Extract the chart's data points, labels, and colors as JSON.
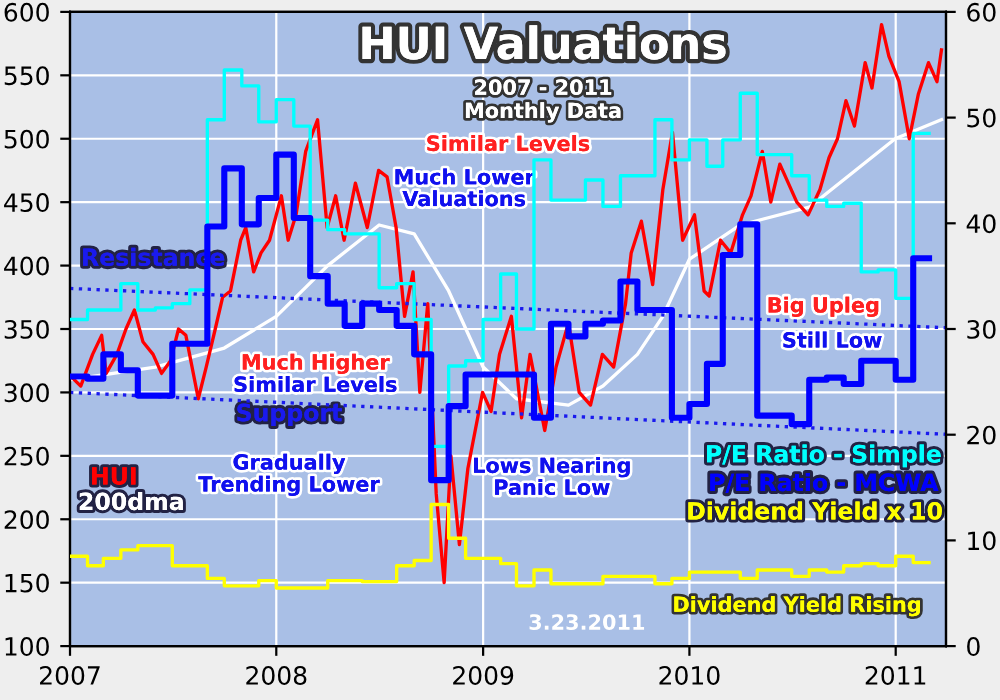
{
  "chart_data": {
    "type": "line",
    "title": "HUI Valuations",
    "subtitle": "2007 - 2011\nMonthly Data",
    "xlim": [
      "2007-01-01",
      "2011-03-31"
    ],
    "xticks": [
      {
        "value": "2007-01-01",
        "label": "2007"
      },
      {
        "value": "2008-01-01",
        "label": "2008"
      },
      {
        "value": "2009-01-01",
        "label": "2009"
      },
      {
        "value": "2010-01-01",
        "label": "2010"
      },
      {
        "value": "2011-01-01",
        "label": "2011"
      }
    ],
    "ylim": [
      100,
      600
    ],
    "yticks": [
      100,
      150,
      200,
      250,
      300,
      350,
      400,
      450,
      500,
      550,
      600
    ],
    "y2lim": [
      0,
      60
    ],
    "y2ticks": [
      0,
      10,
      20,
      30,
      40,
      50,
      60
    ],
    "grid": true,
    "series": [
      {
        "name": "P/E Ratio - Simple",
        "type": "step",
        "axis": "y2",
        "color": "#00ffff",
        "x": [
          "2007-01",
          "2007-02",
          "2007-03",
          "2007-04",
          "2007-05",
          "2007-06",
          "2007-07",
          "2007-08",
          "2007-09",
          "2007-10",
          "2007-11",
          "2007-12",
          "2008-01",
          "2008-02",
          "2008-03",
          "2008-04",
          "2008-05",
          "2008-06",
          "2008-07",
          "2008-08",
          "2008-09",
          "2008-10",
          "2008-11",
          "2008-12",
          "2009-01",
          "2009-02",
          "2009-03",
          "2009-04",
          "2009-05",
          "2009-06",
          "2009-07",
          "2009-08",
          "2009-09",
          "2009-10",
          "2009-11",
          "2009-12",
          "2010-01",
          "2010-02",
          "2010-03",
          "2010-04",
          "2010-05",
          "2010-06",
          "2010-07",
          "2010-08",
          "2010-09",
          "2010-10",
          "2010-11",
          "2010-12",
          "2011-01",
          "2011-02",
          "2011-03"
        ],
        "values": [
          30.9,
          31.8,
          31.8,
          34.3,
          31.8,
          32.0,
          32.4,
          33.7,
          49.8,
          54.5,
          53,
          49.6,
          51.7,
          49.2,
          40.3,
          39.4,
          39,
          39,
          33.9,
          34.3,
          30.9,
          18.9,
          26.5,
          27,
          30.9,
          35.2,
          30,
          46,
          42.2,
          42.2,
          44.1,
          41.6,
          44.5,
          44.5,
          49.8,
          46,
          47.9,
          45.4,
          47.9,
          52.3,
          46.5,
          46.5,
          44.5,
          42.2,
          41.6,
          41.9,
          35.4,
          35.6,
          32.9,
          48.5,
          48.5
        ]
      },
      {
        "name": "Dividend Yield x 10",
        "type": "step",
        "axis": "y2",
        "color": "#ffff00",
        "x": [
          "2007-01",
          "2007-02",
          "2007-03",
          "2007-04",
          "2007-05",
          "2007-06",
          "2007-07",
          "2007-08",
          "2007-09",
          "2007-10",
          "2007-11",
          "2007-12",
          "2008-01",
          "2008-02",
          "2008-03",
          "2008-04",
          "2008-05",
          "2008-06",
          "2008-07",
          "2008-08",
          "2008-09",
          "2008-10",
          "2008-11",
          "2008-12",
          "2009-01",
          "2009-02",
          "2009-03",
          "2009-04",
          "2009-05",
          "2009-06",
          "2009-07",
          "2009-08",
          "2009-09",
          "2009-10",
          "2009-11",
          "2009-12",
          "2010-01",
          "2010-02",
          "2010-03",
          "2010-04",
          "2010-05",
          "2010-06",
          "2010-07",
          "2010-08",
          "2010-09",
          "2010-10",
          "2010-11",
          "2010-12",
          "2011-01",
          "2011-02",
          "2011-03"
        ],
        "values": [
          8.5,
          7.6,
          8.3,
          9.1,
          9.5,
          9.5,
          7.6,
          7.6,
          6.4,
          5.7,
          5.7,
          6.2,
          5.5,
          5.5,
          5.5,
          6.2,
          6.2,
          6.1,
          6.1,
          7.6,
          8.1,
          13.4,
          10.2,
          8.3,
          8.3,
          7.8,
          5.7,
          7.2,
          5.9,
          5.9,
          5.9,
          6.6,
          6.6,
          6.6,
          5.9,
          6.4,
          7.0,
          7.0,
          7.0,
          6.4,
          7.2,
          7.2,
          6.6,
          7.2,
          7.0,
          7.6,
          7.8,
          7.6,
          8.5,
          7.9,
          7.9
        ]
      },
      {
        "name": "200dma",
        "color": "#ffffff",
        "x": [
          "2007-01-02",
          "2007-06-01",
          "2007-10-01",
          "2008-01-01",
          "2008-04-01",
          "2008-07-01",
          "2008-09-01",
          "2008-11-01",
          "2009-01-01",
          "2009-03-01",
          "2009-06-01",
          "2009-08-01",
          "2009-10-01",
          "2009-11-15",
          "2010-01-01",
          "2010-04-01",
          "2010-08-01",
          "2010-12-31",
          "2011-03-23"
        ],
        "values": [
          310,
          320,
          335,
          360,
          400,
          432,
          425,
          380,
          320,
          295,
          290,
          305,
          330,
          360,
          405,
          432,
          446,
          500,
          515
        ]
      },
      {
        "name": "HUI",
        "color": "#ff0000",
        "x": [
          "2007-01-02",
          "2007-01-20",
          "2007-02-10",
          "2007-02-26",
          "2007-03-06",
          "2007-03-25",
          "2007-04-10",
          "2007-04-25",
          "2007-05-10",
          "2007-05-28",
          "2007-06-12",
          "2007-06-28",
          "2007-07-12",
          "2007-07-25",
          "2007-08-16",
          "2007-08-30",
          "2007-09-15",
          "2007-09-28",
          "2007-10-12",
          "2007-10-30",
          "2007-11-08",
          "2007-11-22",
          "2007-12-05",
          "2007-12-20",
          "2008-01-10",
          "2008-01-22",
          "2008-02-05",
          "2008-02-22",
          "2008-03-14",
          "2008-03-31",
          "2008-04-15",
          "2008-04-30",
          "2008-05-20",
          "2008-06-10",
          "2008-06-30",
          "2008-07-15",
          "2008-07-31",
          "2008-08-15",
          "2008-08-30",
          "2008-09-11",
          "2008-09-25",
          "2008-10-10",
          "2008-10-24",
          "2008-11-05",
          "2008-11-20",
          "2008-12-05",
          "2008-12-31",
          "2009-01-15",
          "2009-01-30",
          "2009-02-20",
          "2009-03-10",
          "2009-03-25",
          "2009-04-20",
          "2009-05-10",
          "2009-06-01",
          "2009-06-20",
          "2009-07-10",
          "2009-07-31",
          "2009-08-20",
          "2009-09-10",
          "2009-09-20",
          "2009-10-08",
          "2009-10-28",
          "2009-11-15",
          "2009-12-02",
          "2009-12-20",
          "2010-01-10",
          "2010-01-27",
          "2010-02-05",
          "2010-02-25",
          "2010-03-15",
          "2010-04-05",
          "2010-04-20",
          "2010-05-10",
          "2010-05-25",
          "2010-06-10",
          "2010-06-25",
          "2010-07-10",
          "2010-07-30",
          "2010-08-20",
          "2010-09-05",
          "2010-09-20",
          "2010-10-05",
          "2010-10-20",
          "2010-11-08",
          "2010-11-20",
          "2010-12-07",
          "2010-12-20",
          "2011-01-07",
          "2011-01-25",
          "2011-02-10",
          "2011-02-28",
          "2011-03-15",
          "2011-03-23"
        ],
        "values": [
          313,
          305,
          330,
          345,
          315,
          330,
          350,
          365,
          340,
          330,
          315,
          325,
          350,
          345,
          295,
          320,
          350,
          375,
          380,
          420,
          430,
          395,
          410,
          420,
          455,
          420,
          440,
          490,
          515,
          430,
          455,
          420,
          465,
          430,
          475,
          470,
          430,
          360,
          395,
          300,
          370,
          220,
          150,
          250,
          180,
          240,
          300,
          285,
          330,
          360,
          280,
          330,
          270,
          320,
          355,
          300,
          290,
          330,
          320,
          370,
          410,
          435,
          385,
          460,
          505,
          420,
          440,
          380,
          376,
          420,
          410,
          440,
          455,
          490,
          450,
          480,
          465,
          450,
          440,
          460,
          485,
          500,
          530,
          510,
          560,
          540,
          590,
          565,
          545,
          500,
          535,
          560,
          545,
          570
        ]
      },
      {
        "name": "P/E Ratio - MCWA",
        "type": "step",
        "axis": "y2",
        "color": "#0000ff",
        "x": [
          "2007-01",
          "2007-02",
          "2007-03",
          "2007-04",
          "2007-05",
          "2007-06",
          "2007-07",
          "2007-08",
          "2007-09",
          "2007-10",
          "2007-11",
          "2007-12",
          "2008-01",
          "2008-02",
          "2008-03",
          "2008-04",
          "2008-05",
          "2008-06",
          "2008-07",
          "2008-08",
          "2008-09",
          "2008-10",
          "2008-11",
          "2008-12",
          "2009-01",
          "2009-02",
          "2009-03",
          "2009-04",
          "2009-05",
          "2009-06",
          "2009-07",
          "2009-08",
          "2009-09",
          "2009-10",
          "2009-11",
          "2009-12",
          "2010-01",
          "2010-02",
          "2010-03",
          "2010-04",
          "2010-05",
          "2010-06",
          "2010-07",
          "2010-08",
          "2010-09",
          "2010-10",
          "2010-11",
          "2010-12",
          "2011-01",
          "2011-02",
          "2011-03"
        ],
        "values": [
          25.5,
          25.3,
          27.6,
          26.1,
          23.7,
          23.7,
          28.6,
          28.6,
          39.7,
          45.2,
          39.9,
          42.4,
          46.5,
          40.5,
          35,
          32.4,
          30.3,
          32.4,
          31.8,
          30.3,
          27.6,
          15.7,
          22.7,
          25.7,
          25.7,
          25.7,
          25.7,
          21.6,
          30.5,
          29.3,
          30.5,
          30.8,
          34.5,
          31.8,
          31.8,
          21.6,
          22.9,
          26.7,
          37,
          39.9,
          21.8,
          21.8,
          21,
          25.2,
          25.4,
          24.8,
          27,
          27,
          25.2,
          36.7,
          36.7
        ]
      },
      {
        "name": "Resistance",
        "line_style": "dotted",
        "color": "#1a1aee",
        "x": [
          "2007-01-01",
          "2011-03-31"
        ],
        "values": [
          382,
          351
        ]
      },
      {
        "name": "Support",
        "line_style": "dotted",
        "color": "#1a1aee",
        "x": [
          "2007-01-01",
          "2011-03-31"
        ],
        "values": [
          300,
          267
        ]
      }
    ],
    "annotations": [
      "Similar Levels",
      "Much Lower\nValuations",
      "Much Higher",
      "Similar Levels",
      "Gradually\nTrending Lower",
      "Lows Nearing\nPanic Low",
      "Big Upleg",
      "Still Low",
      "Dividend Yield Rising",
      "3.23.2011"
    ]
  }
}
